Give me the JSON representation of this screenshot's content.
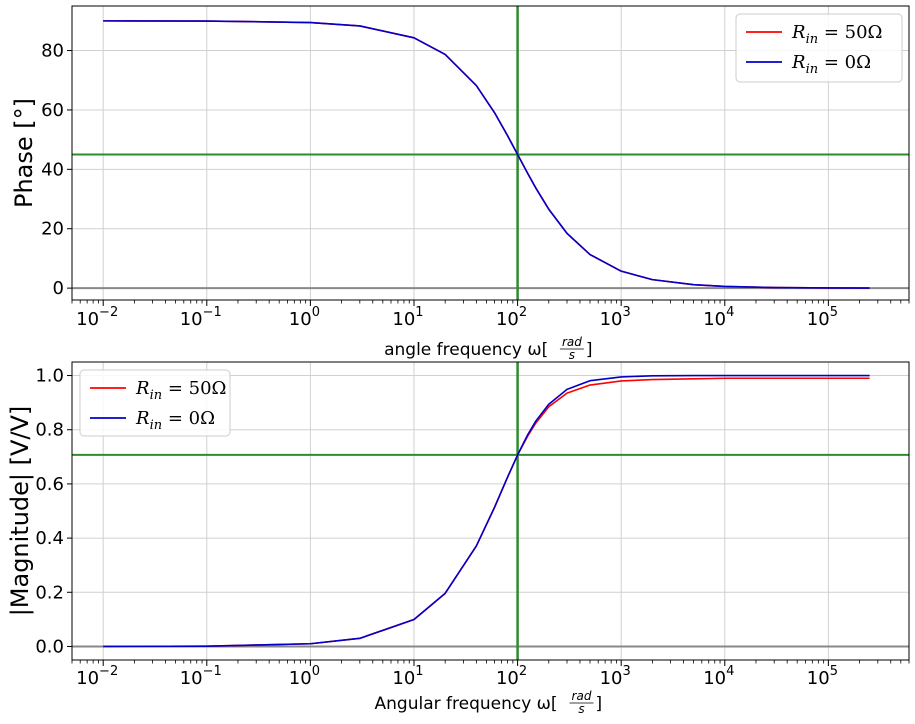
{
  "chart_data": [
    {
      "type": "line",
      "xscale": "log",
      "xlim": [
        0.005,
        600000
      ],
      "ylim": [
        -4,
        95
      ],
      "x_ticks": [
        0.01,
        0.1,
        1,
        10,
        100,
        1000,
        10000,
        100000
      ],
      "x_tick_labels": [
        {
          "base": "10",
          "exp": "−2"
        },
        {
          "base": "10",
          "exp": "−1"
        },
        {
          "base": "10",
          "exp": "0"
        },
        {
          "base": "10",
          "exp": "1"
        },
        {
          "base": "10",
          "exp": "2"
        },
        {
          "base": "10",
          "exp": "3"
        },
        {
          "base": "10",
          "exp": "4"
        },
        {
          "base": "10",
          "exp": "5"
        }
      ],
      "y_ticks": [
        0,
        20,
        40,
        60,
        80
      ],
      "y_tick_labels": [
        "0",
        "20",
        "40",
        "60",
        "80"
      ],
      "ylabel": "Phase [°]",
      "xlabel": {
        "prefix": "angle frequency ω[",
        "frac_num": "rad",
        "frac_den": "s",
        "suffix": "]"
      },
      "grid": true,
      "legend_position": "top-right",
      "x": [
        0.01,
        0.1,
        1,
        3,
        10,
        20,
        40,
        60,
        80,
        100,
        125,
        150,
        200,
        300,
        500,
        1000,
        2000,
        5000,
        10000,
        30000,
        100000,
        250000
      ],
      "series": [
        {
          "name": "R_in = 50Ω",
          "color": "#ff0000",
          "values": [
            89.99,
            89.94,
            89.43,
            88.28,
            84.29,
            78.69,
            68.2,
            59.04,
            51.34,
            45.0,
            38.66,
            33.69,
            26.57,
            18.43,
            11.31,
            5.71,
            2.86,
            1.15,
            0.57,
            0.19,
            0.06,
            0.02
          ]
        },
        {
          "name": "R_in = 0Ω",
          "color": "#0000cc",
          "values": [
            89.99,
            89.94,
            89.43,
            88.28,
            84.29,
            78.69,
            68.2,
            59.04,
            51.34,
            45.0,
            38.66,
            33.69,
            26.57,
            18.43,
            11.31,
            5.71,
            2.86,
            1.15,
            0.57,
            0.19,
            0.06,
            0.02
          ]
        }
      ],
      "reference_lines": {
        "horizontal": [
          45,
          0
        ],
        "vertical": [
          100
        ],
        "colors": [
          "#2e8b2e",
          "#888888",
          "#2e8b2e"
        ]
      }
    },
    {
      "type": "line",
      "xscale": "log",
      "xlim": [
        0.005,
        600000
      ],
      "ylim": [
        -0.05,
        1.05
      ],
      "x_ticks": [
        0.01,
        0.1,
        1,
        10,
        100,
        1000,
        10000,
        100000
      ],
      "x_tick_labels": [
        {
          "base": "10",
          "exp": "−2"
        },
        {
          "base": "10",
          "exp": "−1"
        },
        {
          "base": "10",
          "exp": "0"
        },
        {
          "base": "10",
          "exp": "1"
        },
        {
          "base": "10",
          "exp": "2"
        },
        {
          "base": "10",
          "exp": "3"
        },
        {
          "base": "10",
          "exp": "4"
        },
        {
          "base": "10",
          "exp": "5"
        }
      ],
      "y_ticks": [
        0,
        0.2,
        0.4,
        0.6,
        0.8,
        1.0
      ],
      "y_tick_labels": [
        "0.0",
        "0.2",
        "0.4",
        "0.6",
        "0.8",
        "1.0"
      ],
      "ylabel": "|Magnitude| [V/V]",
      "xlabel": {
        "prefix": "Angular frequency ω[",
        "frac_num": "rad",
        "frac_den": "s",
        "suffix": "]"
      },
      "grid": true,
      "legend_position": "top-left",
      "x": [
        0.01,
        0.1,
        1,
        3,
        10,
        20,
        40,
        60,
        80,
        100,
        125,
        150,
        200,
        300,
        500,
        1000,
        2000,
        5000,
        10000,
        30000,
        100000,
        250000
      ],
      "series": [
        {
          "name": "R_in = 50Ω",
          "color": "#ff0000",
          "values": [
            0.0001,
            0.001,
            0.01,
            0.03,
            0.0995,
            0.196,
            0.371,
            0.514,
            0.625,
            0.707,
            0.776,
            0.825,
            0.885,
            0.935,
            0.965,
            0.98,
            0.985,
            0.988,
            0.99,
            0.99,
            0.99,
            0.99
          ]
        },
        {
          "name": "R_in = 0Ω",
          "color": "#0000cc",
          "values": [
            0.0001,
            0.001,
            0.01,
            0.03,
            0.0995,
            0.196,
            0.371,
            0.514,
            0.625,
            0.707,
            0.781,
            0.832,
            0.894,
            0.949,
            0.981,
            0.995,
            0.999,
            1.0,
            1.0,
            1.0,
            1.0,
            1.0
          ]
        }
      ],
      "reference_lines": {
        "horizontal": [
          0.707,
          0
        ],
        "vertical": [
          100
        ],
        "colors": [
          "#2e8b2e",
          "#888888",
          "#2e8b2e"
        ]
      }
    }
  ],
  "legend_labels": [
    {
      "symbol": "R",
      "sub": "in",
      "rest": " = 50Ω"
    },
    {
      "symbol": "R",
      "sub": "in",
      "rest": " = 0Ω"
    }
  ]
}
